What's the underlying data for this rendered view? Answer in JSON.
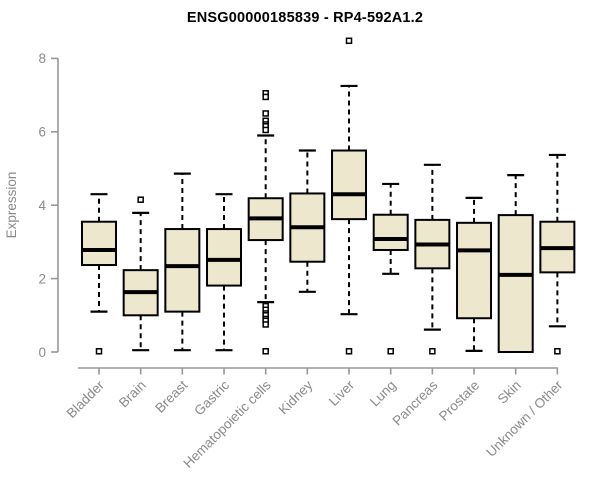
{
  "chart_data": {
    "type": "boxplot",
    "title": "ENSG00000185839 - RP4-592A1.2",
    "ylabel": "Expression",
    "xlabel": "",
    "ylim": [
      0,
      8
    ],
    "yticks": [
      0,
      2,
      4,
      6,
      8
    ],
    "grid": false,
    "legend": "none",
    "categories": [
      "Bladder",
      "Brain",
      "Breast",
      "Gastric",
      "Hematopoietic cells",
      "Kidney",
      "Liver",
      "Lung",
      "Pancreas",
      "Prostate",
      "Skin",
      "Unknown / Other"
    ],
    "boxes": [
      {
        "category": "Bladder",
        "whisker_low": 1.1,
        "q1": 2.37,
        "median": 2.78,
        "q3": 3.55,
        "whisker_high": 4.3,
        "outliers": [
          0.02
        ]
      },
      {
        "category": "Brain",
        "whisker_low": 0.05,
        "q1": 1.0,
        "median": 1.63,
        "q3": 2.23,
        "whisker_high": 3.79,
        "outliers": [
          4.15
        ]
      },
      {
        "category": "Breast",
        "whisker_low": 0.05,
        "q1": 1.1,
        "median": 2.34,
        "q3": 3.35,
        "whisker_high": 4.86,
        "outliers": []
      },
      {
        "category": "Gastric",
        "whisker_low": 0.05,
        "q1": 1.81,
        "median": 2.51,
        "q3": 3.35,
        "whisker_high": 4.3,
        "outliers": []
      },
      {
        "category": "Hematopoietic cells",
        "whisker_low": 1.36,
        "q1": 3.05,
        "median": 3.64,
        "q3": 4.19,
        "whisker_high": 5.9,
        "outliers": [
          7.05,
          6.95,
          6.5,
          6.3,
          6.2,
          6.15,
          6.05,
          1.25,
          1.15,
          1.05,
          1.0,
          0.9,
          0.85,
          0.75,
          0.02
        ]
      },
      {
        "category": "Kidney",
        "whisker_low": 1.64,
        "q1": 2.46,
        "median": 3.4,
        "q3": 4.32,
        "whisker_high": 5.49,
        "outliers": []
      },
      {
        "category": "Liver",
        "whisker_low": 1.03,
        "q1": 3.62,
        "median": 4.3,
        "q3": 5.49,
        "whisker_high": 7.25,
        "outliers": [
          8.48,
          0.02
        ]
      },
      {
        "category": "Lung",
        "whisker_low": 2.13,
        "q1": 2.78,
        "median": 3.08,
        "q3": 3.74,
        "whisker_high": 4.58,
        "outliers": [
          0.02
        ]
      },
      {
        "category": "Pancreas",
        "whisker_low": 0.61,
        "q1": 2.28,
        "median": 2.93,
        "q3": 3.6,
        "whisker_high": 5.1,
        "outliers": [
          0.02
        ]
      },
      {
        "category": "Prostate",
        "whisker_low": 0.03,
        "q1": 0.92,
        "median": 2.77,
        "q3": 3.52,
        "whisker_high": 4.2,
        "outliers": []
      },
      {
        "category": "Skin",
        "whisker_low": 0.0,
        "q1": 0.0,
        "median": 2.1,
        "q3": 3.73,
        "whisker_high": 4.82,
        "outliers": []
      },
      {
        "category": "Unknown / Other",
        "whisker_low": 0.7,
        "q1": 2.17,
        "median": 2.83,
        "q3": 3.55,
        "whisker_high": 5.37,
        "outliers": [
          0.02
        ]
      }
    ]
  },
  "colors": {
    "background": "#FFFFFF",
    "box_fill": "#ECE7CD",
    "box_stroke": "#000000",
    "median": "#000000",
    "outlier_fill": "#FFFFFF",
    "axis": "#989898",
    "tick_label": "#8A8A8A",
    "title": "#000000"
  }
}
